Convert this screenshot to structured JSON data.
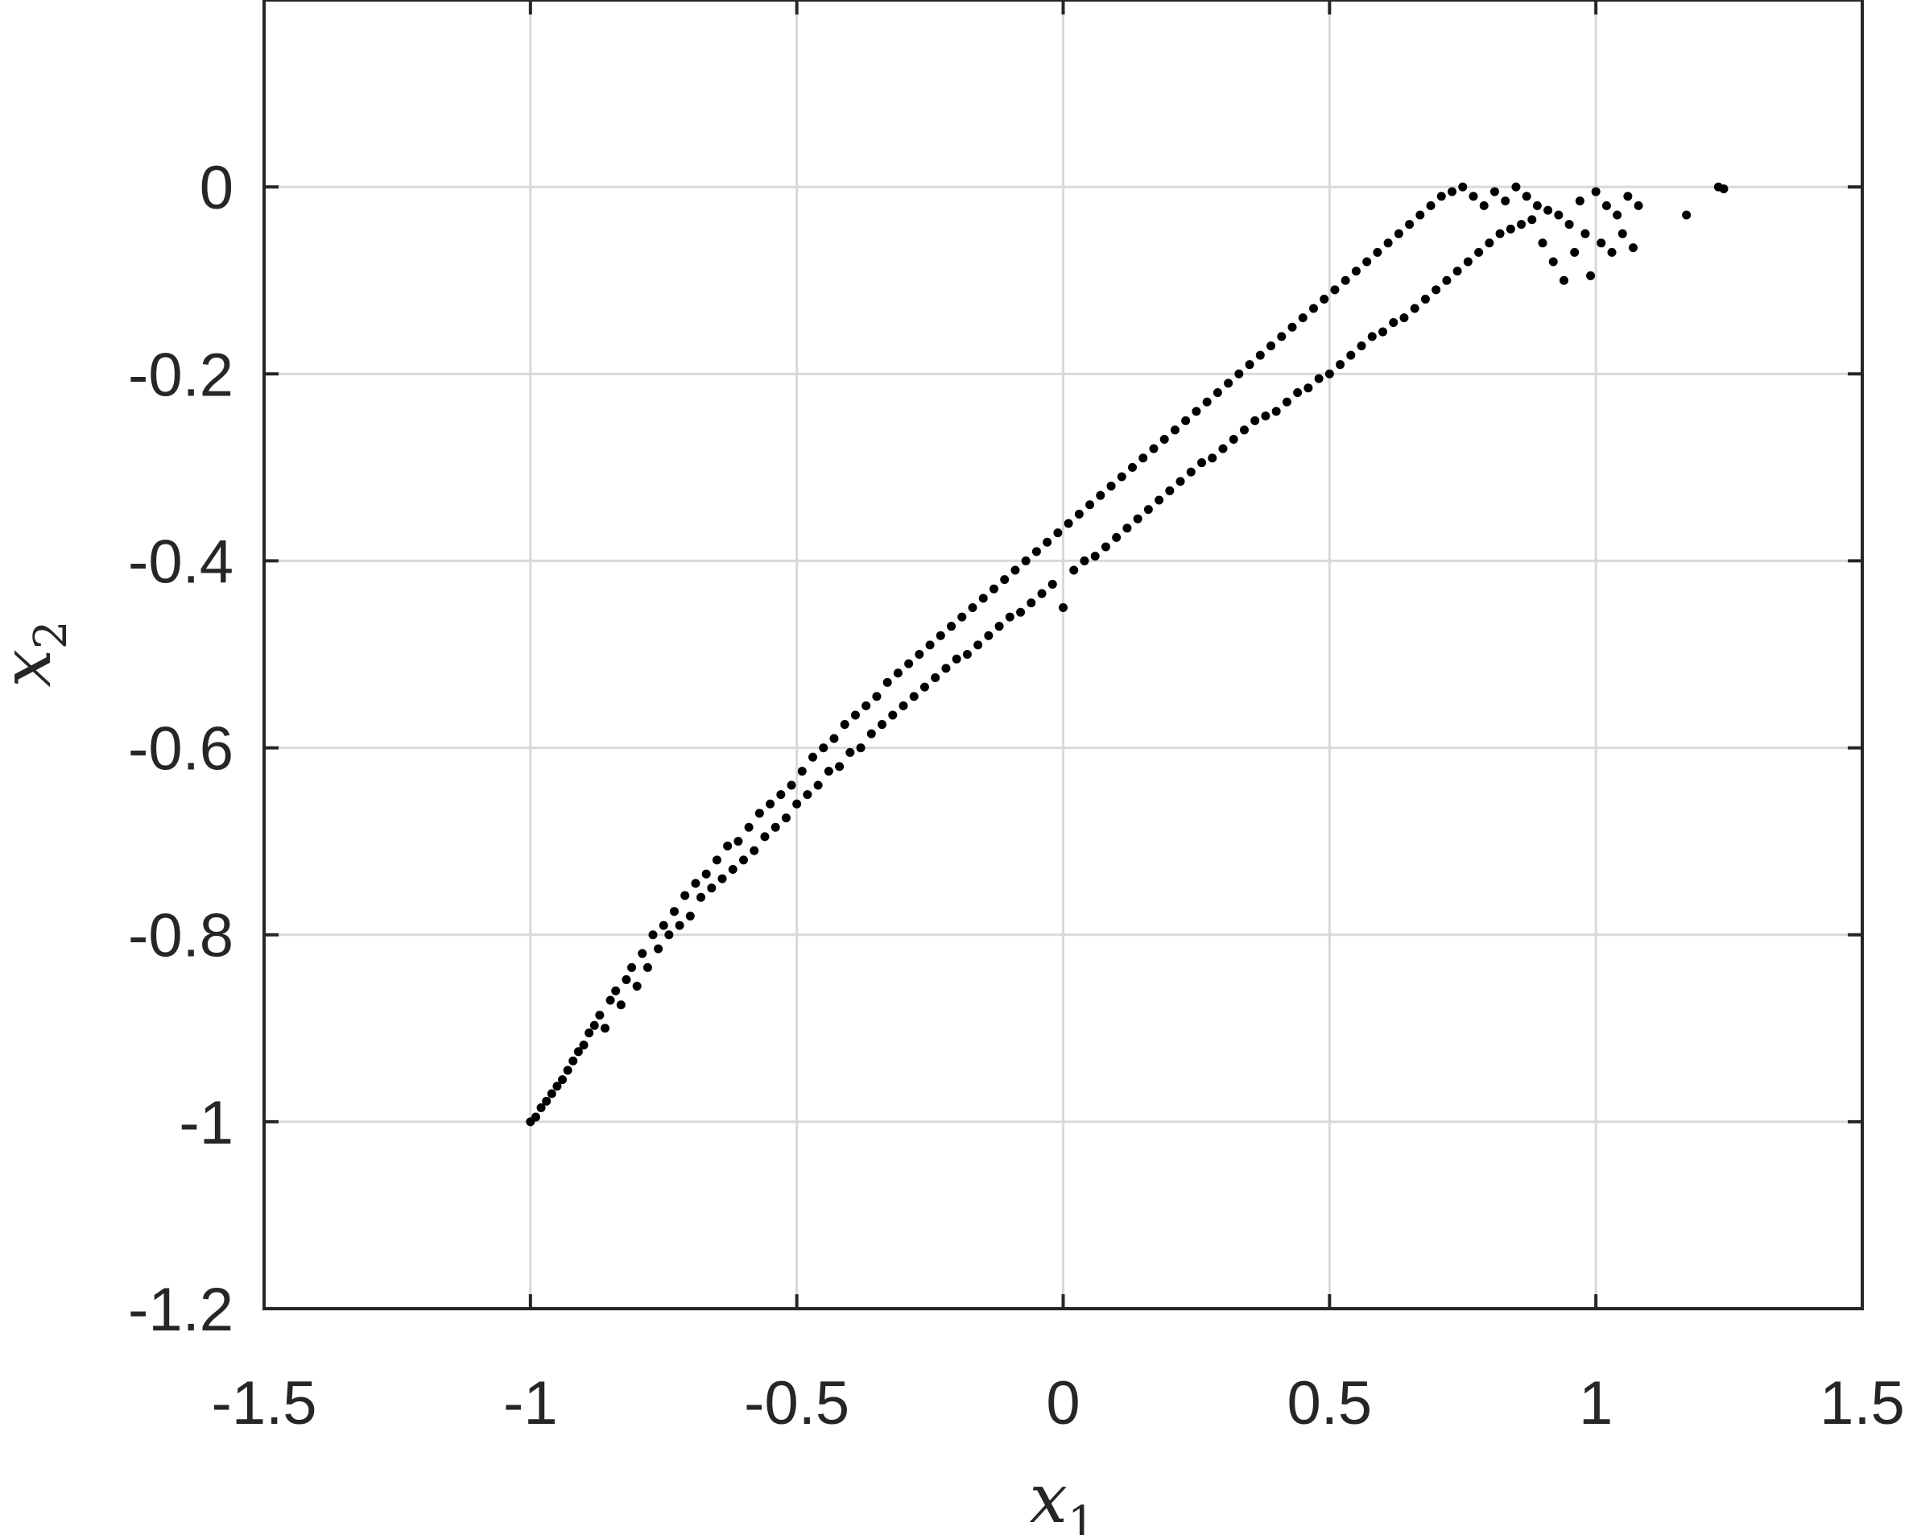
{
  "chart_data": {
    "type": "scatter",
    "title": "",
    "xlabel": {
      "base": "x",
      "sub": "1"
    },
    "ylabel": {
      "base": "x",
      "sub": "2"
    },
    "xlim": [
      -1.5,
      1.5
    ],
    "ylim": [
      -1.2,
      0.2
    ],
    "xticks": [
      -1.5,
      -1,
      -0.5,
      0,
      0.5,
      1,
      1.5
    ],
    "xtick_labels": [
      "-1.5",
      "-1",
      "-0.5",
      "0",
      "0.5",
      "1",
      "1.5"
    ],
    "yticks": [
      -1.2,
      -1,
      -0.8,
      -0.6,
      -0.4,
      -0.2,
      0
    ],
    "ytick_labels": [
      "-1.2",
      "-1",
      "-0.8",
      "-0.6",
      "-0.4",
      "-0.2",
      "0"
    ],
    "grid": true,
    "legend": "none",
    "marker_color": "#000000",
    "grid_color": "#d9d9d9",
    "axis_color": "#262626",
    "series": [
      {
        "values": [
          [
            -1.0,
            -1.0
          ],
          [
            -0.99,
            -0.995
          ],
          [
            -0.98,
            -0.985
          ],
          [
            -0.97,
            -0.978
          ],
          [
            -0.96,
            -0.97
          ],
          [
            -0.95,
            -0.962
          ],
          [
            -0.94,
            -0.955
          ],
          [
            -0.93,
            -0.945
          ],
          [
            -0.92,
            -0.935
          ],
          [
            -0.91,
            -0.925
          ],
          [
            -0.9,
            -0.918
          ],
          [
            -0.89,
            -0.905
          ],
          [
            -0.88,
            -0.897
          ],
          [
            -0.87,
            -0.886
          ],
          [
            -0.86,
            -0.9
          ],
          [
            -0.85,
            -0.87
          ],
          [
            -0.84,
            -0.86
          ],
          [
            -0.83,
            -0.875
          ],
          [
            -0.82,
            -0.848
          ],
          [
            -0.81,
            -0.835
          ],
          [
            -0.8,
            -0.855
          ],
          [
            -0.79,
            -0.82
          ],
          [
            -0.78,
            -0.835
          ],
          [
            -0.77,
            -0.8
          ],
          [
            -0.76,
            -0.815
          ],
          [
            -0.75,
            -0.79
          ],
          [
            -0.74,
            -0.8
          ],
          [
            -0.73,
            -0.775
          ],
          [
            -0.72,
            -0.79
          ],
          [
            -0.71,
            -0.758
          ],
          [
            -0.7,
            -0.78
          ],
          [
            -0.69,
            -0.745
          ],
          [
            -0.68,
            -0.76
          ],
          [
            -0.67,
            -0.735
          ],
          [
            -0.66,
            -0.75
          ],
          [
            -0.65,
            -0.72
          ],
          [
            -0.64,
            -0.74
          ],
          [
            -0.63,
            -0.705
          ],
          [
            -0.62,
            -0.73
          ],
          [
            -0.61,
            -0.7
          ],
          [
            -0.6,
            -0.72
          ],
          [
            -0.59,
            -0.685
          ],
          [
            -0.58,
            -0.71
          ],
          [
            -0.57,
            -0.67
          ],
          [
            -0.56,
            -0.695
          ],
          [
            -0.55,
            -0.66
          ],
          [
            -0.54,
            -0.685
          ],
          [
            -0.53,
            -0.65
          ],
          [
            -0.52,
            -0.675
          ],
          [
            -0.51,
            -0.64
          ],
          [
            -0.5,
            -0.66
          ],
          [
            -0.49,
            -0.625
          ],
          [
            -0.48,
            -0.65
          ],
          [
            -0.47,
            -0.61
          ],
          [
            -0.46,
            -0.64
          ],
          [
            -0.45,
            -0.6
          ],
          [
            -0.44,
            -0.625
          ],
          [
            -0.43,
            -0.59
          ],
          [
            -0.42,
            -0.62
          ],
          [
            -0.41,
            -0.575
          ],
          [
            -0.4,
            -0.605
          ],
          [
            -0.39,
            -0.565
          ],
          [
            -0.38,
            -0.6
          ],
          [
            -0.37,
            -0.555
          ],
          [
            -0.36,
            -0.585
          ],
          [
            -0.35,
            -0.545
          ],
          [
            -0.34,
            -0.575
          ],
          [
            -0.33,
            -0.53
          ],
          [
            -0.32,
            -0.565
          ],
          [
            -0.31,
            -0.52
          ],
          [
            -0.3,
            -0.555
          ],
          [
            -0.29,
            -0.51
          ],
          [
            -0.28,
            -0.545
          ],
          [
            -0.27,
            -0.5
          ],
          [
            -0.26,
            -0.535
          ],
          [
            -0.25,
            -0.49
          ],
          [
            -0.24,
            -0.525
          ],
          [
            -0.23,
            -0.48
          ],
          [
            -0.22,
            -0.515
          ],
          [
            -0.21,
            -0.47
          ],
          [
            -0.2,
            -0.505
          ],
          [
            -0.19,
            -0.46
          ],
          [
            -0.18,
            -0.5
          ],
          [
            -0.17,
            -0.45
          ],
          [
            -0.16,
            -0.49
          ],
          [
            -0.15,
            -0.44
          ],
          [
            -0.14,
            -0.48
          ],
          [
            -0.13,
            -0.43
          ],
          [
            -0.12,
            -0.47
          ],
          [
            -0.11,
            -0.42
          ],
          [
            -0.1,
            -0.46
          ],
          [
            -0.09,
            -0.41
          ],
          [
            -0.08,
            -0.455
          ],
          [
            -0.07,
            -0.4
          ],
          [
            -0.06,
            -0.445
          ],
          [
            -0.05,
            -0.39
          ],
          [
            -0.04,
            -0.435
          ],
          [
            -0.03,
            -0.38
          ],
          [
            -0.02,
            -0.425
          ],
          [
            -0.01,
            -0.37
          ],
          [
            0.0,
            -0.45
          ],
          [
            0.01,
            -0.36
          ],
          [
            0.02,
            -0.41
          ],
          [
            0.03,
            -0.35
          ],
          [
            0.04,
            -0.4
          ],
          [
            0.05,
            -0.34
          ],
          [
            0.06,
            -0.395
          ],
          [
            0.07,
            -0.33
          ],
          [
            0.08,
            -0.385
          ],
          [
            0.09,
            -0.32
          ],
          [
            0.1,
            -0.375
          ],
          [
            0.11,
            -0.31
          ],
          [
            0.12,
            -0.365
          ],
          [
            0.13,
            -0.3
          ],
          [
            0.14,
            -0.355
          ],
          [
            0.15,
            -0.29
          ],
          [
            0.16,
            -0.345
          ],
          [
            0.17,
            -0.28
          ],
          [
            0.18,
            -0.335
          ],
          [
            0.19,
            -0.27
          ],
          [
            0.2,
            -0.325
          ],
          [
            0.21,
            -0.26
          ],
          [
            0.22,
            -0.315
          ],
          [
            0.23,
            -0.25
          ],
          [
            0.24,
            -0.305
          ],
          [
            0.25,
            -0.24
          ],
          [
            0.26,
            -0.295
          ],
          [
            0.27,
            -0.23
          ],
          [
            0.28,
            -0.29
          ],
          [
            0.29,
            -0.22
          ],
          [
            0.3,
            -0.28
          ],
          [
            0.31,
            -0.21
          ],
          [
            0.32,
            -0.27
          ],
          [
            0.33,
            -0.2
          ],
          [
            0.34,
            -0.26
          ],
          [
            0.35,
            -0.19
          ],
          [
            0.36,
            -0.25
          ],
          [
            0.37,
            -0.18
          ],
          [
            0.38,
            -0.245
          ],
          [
            0.39,
            -0.17
          ],
          [
            0.4,
            -0.24
          ],
          [
            0.41,
            -0.16
          ],
          [
            0.42,
            -0.23
          ],
          [
            0.43,
            -0.15
          ],
          [
            0.44,
            -0.22
          ],
          [
            0.45,
            -0.14
          ],
          [
            0.46,
            -0.215
          ],
          [
            0.47,
            -0.13
          ],
          [
            0.48,
            -0.205
          ],
          [
            0.49,
            -0.12
          ],
          [
            0.5,
            -0.2
          ],
          [
            0.51,
            -0.11
          ],
          [
            0.52,
            -0.19
          ],
          [
            0.53,
            -0.1
          ],
          [
            0.54,
            -0.18
          ],
          [
            0.55,
            -0.09
          ],
          [
            0.56,
            -0.17
          ],
          [
            0.57,
            -0.08
          ],
          [
            0.58,
            -0.16
          ],
          [
            0.59,
            -0.07
          ],
          [
            0.6,
            -0.155
          ],
          [
            0.61,
            -0.06
          ],
          [
            0.62,
            -0.145
          ],
          [
            0.63,
            -0.05
          ],
          [
            0.64,
            -0.14
          ],
          [
            0.65,
            -0.04
          ],
          [
            0.66,
            -0.13
          ],
          [
            0.67,
            -0.03
          ],
          [
            0.68,
            -0.12
          ],
          [
            0.69,
            -0.02
          ],
          [
            0.7,
            -0.11
          ],
          [
            0.71,
            -0.01
          ],
          [
            0.72,
            -0.1
          ],
          [
            0.73,
            -0.005
          ],
          [
            0.74,
            -0.09
          ],
          [
            0.75,
            0.0
          ],
          [
            0.76,
            -0.08
          ],
          [
            0.77,
            -0.01
          ],
          [
            0.78,
            -0.07
          ],
          [
            0.79,
            -0.02
          ],
          [
            0.8,
            -0.06
          ],
          [
            0.81,
            -0.005
          ],
          [
            0.82,
            -0.05
          ],
          [
            0.83,
            -0.015
          ],
          [
            0.84,
            -0.045
          ],
          [
            0.85,
            0.0
          ],
          [
            0.86,
            -0.04
          ],
          [
            0.87,
            -0.01
          ],
          [
            0.88,
            -0.035
          ],
          [
            0.89,
            -0.02
          ],
          [
            0.9,
            -0.06
          ],
          [
            0.91,
            -0.025
          ],
          [
            0.92,
            -0.08
          ],
          [
            0.93,
            -0.03
          ],
          [
            0.94,
            -0.1
          ],
          [
            0.95,
            -0.04
          ],
          [
            0.96,
            -0.07
          ],
          [
            0.97,
            -0.015
          ],
          [
            0.98,
            -0.05
          ],
          [
            0.99,
            -0.095
          ],
          [
            1.0,
            -0.005
          ],
          [
            1.01,
            -0.06
          ],
          [
            1.02,
            -0.02
          ],
          [
            1.03,
            -0.07
          ],
          [
            1.04,
            -0.03
          ],
          [
            1.05,
            -0.05
          ],
          [
            1.06,
            -0.01
          ],
          [
            1.07,
            -0.065
          ],
          [
            1.08,
            -0.02
          ],
          [
            1.17,
            -0.03
          ],
          [
            1.23,
            0.0
          ],
          [
            1.24,
            -0.002
          ]
        ]
      }
    ]
  }
}
